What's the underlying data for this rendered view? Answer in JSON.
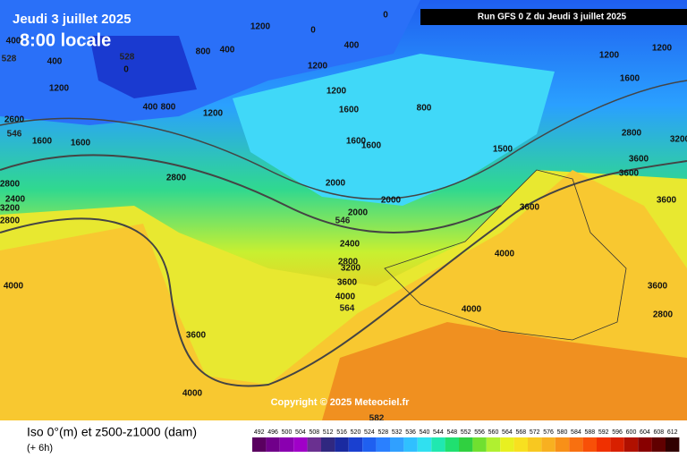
{
  "header": {
    "date": "Jeudi 3 juillet 2025",
    "time": "8:00 locale",
    "run": "Run GFS 0 Z du Jeudi 3 juillet 2025"
  },
  "copyright": "Copyright © 2025 Meteociel.fr",
  "legend": {
    "title": "Iso 0°(m) et z500-z1000 (dam)",
    "step": "(+ 6h)",
    "values": [
      492,
      496,
      500,
      504,
      508,
      512,
      516,
      520,
      524,
      528,
      532,
      536,
      540,
      544,
      548,
      552,
      556,
      560,
      564,
      568,
      572,
      576,
      580,
      584,
      588,
      592,
      596,
      600,
      604,
      608,
      612
    ],
    "colors": [
      "#5a0060",
      "#70008a",
      "#8a00b0",
      "#a000c8",
      "#6a3090",
      "#302880",
      "#1a2aa0",
      "#1a40d0",
      "#1f60f0",
      "#2a80ff",
      "#30a0ff",
      "#30c0ff",
      "#30e0f0",
      "#20e8b0",
      "#20e070",
      "#30d040",
      "#70e030",
      "#b0f030",
      "#e8f020",
      "#f8e020",
      "#f8c820",
      "#f8b020",
      "#f89018",
      "#f87010",
      "#f85008",
      "#f03000",
      "#d82000",
      "#b01000",
      "#880000",
      "#600000",
      "#300000"
    ]
  },
  "contour_labels": [
    "800",
    "400",
    "1200",
    "1200",
    "400",
    "800",
    "1200",
    "1600",
    "1600",
    "1600",
    "1200",
    "1200",
    "1600",
    "2800",
    "3200",
    "3600",
    "3600",
    "3600",
    "3600",
    "4000",
    "4000",
    "4000",
    "3600",
    "3200",
    "2800",
    "2400",
    "2000",
    "2000",
    "2000",
    "1600",
    "1600",
    "2800",
    "2800",
    "2400",
    "3200",
    "2800",
    "4000",
    "3600",
    "4000",
    "1200",
    "1200",
    "400",
    "400",
    "400",
    "800",
    "2600",
    "3600",
    "2800",
    "1500",
    "0",
    "0",
    "0"
  ],
  "geopotential_labels": [
    "528",
    "528",
    "546",
    "546",
    "564",
    "582"
  ]
}
